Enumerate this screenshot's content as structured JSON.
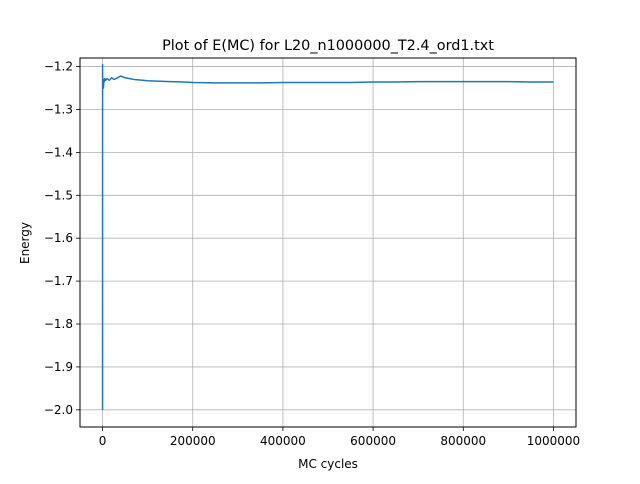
{
  "chart_data": {
    "type": "line",
    "title": "Plot of E(MC) for L20_n1000000_T2.4_ord1.txt",
    "xlabel": "MC cycles",
    "ylabel": "Energy",
    "xlim": [
      -50000,
      1050000
    ],
    "ylim": [
      -2.04,
      -1.18
    ],
    "grid": true,
    "line_color": "#1f77b4",
    "xticks": [
      {
        "value": 0,
        "label": "0"
      },
      {
        "value": 200000,
        "label": "200000"
      },
      {
        "value": 400000,
        "label": "400000"
      },
      {
        "value": 600000,
        "label": "600000"
      },
      {
        "value": 800000,
        "label": "800000"
      },
      {
        "value": 1000000,
        "label": "1000000"
      }
    ],
    "yticks": [
      {
        "value": -1.2,
        "label": "−1.2"
      },
      {
        "value": -1.3,
        "label": "−1.3"
      },
      {
        "value": -1.4,
        "label": "−1.4"
      },
      {
        "value": -1.5,
        "label": "−1.5"
      },
      {
        "value": -1.6,
        "label": "−1.6"
      },
      {
        "value": -1.7,
        "label": "−1.7"
      },
      {
        "value": -1.8,
        "label": "−1.8"
      },
      {
        "value": -1.9,
        "label": "−1.9"
      },
      {
        "value": -2.0,
        "label": "−2.0"
      }
    ],
    "series": [
      {
        "x": [
          0,
          100,
          300,
          600,
          1000,
          1500,
          2000,
          3000,
          4000,
          5000,
          7000,
          10000,
          15000,
          20000,
          25000,
          30000,
          35000,
          40000,
          45000,
          50000,
          60000,
          70000,
          80000,
          100000,
          120000,
          150000,
          180000,
          200000,
          250000,
          300000,
          350000,
          400000,
          450000,
          500000,
          550000,
          600000,
          650000,
          700000,
          750000,
          800000,
          850000,
          900000,
          950000,
          1000000
        ],
        "y": [
          -2.0,
          -1.195,
          -1.25,
          -1.23,
          -1.245,
          -1.235,
          -1.25,
          -1.23,
          -1.235,
          -1.228,
          -1.232,
          -1.228,
          -1.232,
          -1.226,
          -1.23,
          -1.228,
          -1.225,
          -1.222,
          -1.224,
          -1.226,
          -1.228,
          -1.23,
          -1.231,
          -1.233,
          -1.234,
          -1.235,
          -1.236,
          -1.237,
          -1.238,
          -1.238,
          -1.238,
          -1.237,
          -1.237,
          -1.237,
          -1.237,
          -1.236,
          -1.236,
          -1.235,
          -1.235,
          -1.235,
          -1.235,
          -1.235,
          -1.236,
          -1.236
        ]
      }
    ]
  }
}
